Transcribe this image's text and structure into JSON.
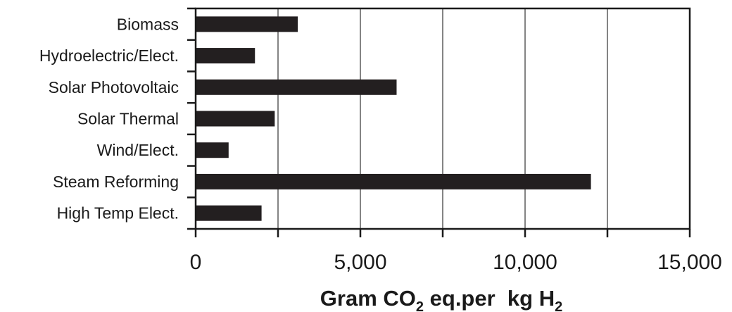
{
  "chart_data": {
    "type": "bar",
    "orientation": "horizontal",
    "categories": [
      "Biomass",
      "Hydroelectric/Elect.",
      "Solar Photovoltaic",
      "Solar Thermal",
      "Wind/Elect.",
      "Steam Reforming",
      "High Temp Elect."
    ],
    "values": [
      3100,
      1800,
      6100,
      2400,
      1000,
      12000,
      2000
    ],
    "xlabel": {
      "part1": "Gram CO",
      "sub1": "2",
      "part2": " eq.per  kg H",
      "sub2": "2"
    },
    "ylabel": "",
    "title": "",
    "xlim": [
      0,
      15000
    ],
    "xticks": [
      0,
      5000,
      10000,
      15000
    ],
    "xtick_labels": [
      "0",
      "5,000",
      "10,000",
      "15,000"
    ],
    "grid": true,
    "bar_color": "#231f20",
    "axis_color": "#1a1a1a"
  }
}
